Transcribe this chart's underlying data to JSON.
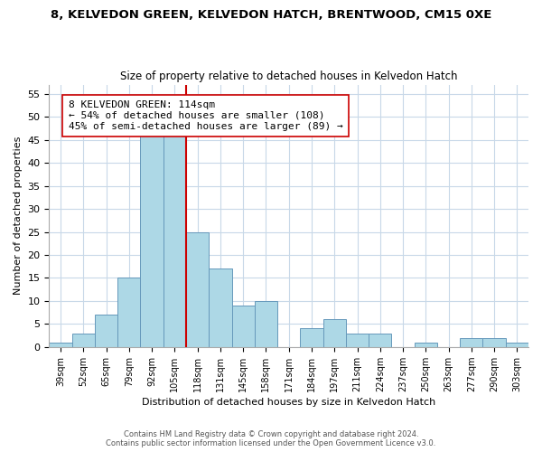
{
  "title": "8, KELVEDON GREEN, KELVEDON HATCH, BRENTWOOD, CM15 0XE",
  "subtitle": "Size of property relative to detached houses in Kelvedon Hatch",
  "xlabel": "Distribution of detached houses by size in Kelvedon Hatch",
  "ylabel": "Number of detached properties",
  "bin_labels": [
    "39sqm",
    "52sqm",
    "65sqm",
    "79sqm",
    "92sqm",
    "105sqm",
    "118sqm",
    "131sqm",
    "145sqm",
    "158sqm",
    "171sqm",
    "184sqm",
    "197sqm",
    "211sqm",
    "224sqm",
    "237sqm",
    "250sqm",
    "263sqm",
    "277sqm",
    "290sqm",
    "303sqm"
  ],
  "bar_values": [
    1,
    3,
    7,
    15,
    46,
    46,
    25,
    17,
    9,
    10,
    0,
    4,
    6,
    3,
    3,
    0,
    1,
    0,
    2,
    2,
    1
  ],
  "bar_color": "#add8e6",
  "bar_edge_color": "#6699bb",
  "vline_color": "#cc0000",
  "annotation_line1": "8 KELVEDON GREEN: 114sqm",
  "annotation_line2": "← 54% of detached houses are smaller (108)",
  "annotation_line3": "45% of semi-detached houses are larger (89) →",
  "ylim": [
    0,
    57
  ],
  "yticks": [
    0,
    5,
    10,
    15,
    20,
    25,
    30,
    35,
    40,
    45,
    50,
    55
  ],
  "footer1": "Contains HM Land Registry data © Crown copyright and database right 2024.",
  "footer2": "Contains public sector information licensed under the Open Government Licence v3.0.",
  "background_color": "#ffffff",
  "grid_color": "#c8d8e8"
}
